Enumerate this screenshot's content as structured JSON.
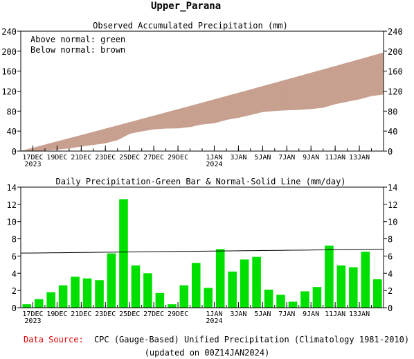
{
  "page_title": "Upper_Parana",
  "chart_data": [
    {
      "type": "area",
      "title": "Observed Accumulated Precipitation (mm)",
      "notes": [
        "Above normal: green",
        "Below normal: brown"
      ],
      "ylim": [
        0,
        240
      ],
      "yticks": [
        0,
        40,
        80,
        120,
        160,
        200,
        240
      ],
      "x_tick_labels": [
        {
          "day": 1,
          "label": "17DEC",
          "sub": "2023"
        },
        {
          "day": 3,
          "label": "19DEC",
          "sub": ""
        },
        {
          "day": 5,
          "label": "21DEC",
          "sub": ""
        },
        {
          "day": 7,
          "label": "23DEC",
          "sub": ""
        },
        {
          "day": 9,
          "label": "25DEC",
          "sub": ""
        },
        {
          "day": 11,
          "label": "27DEC",
          "sub": ""
        },
        {
          "day": 13,
          "label": "29DEC",
          "sub": ""
        },
        {
          "day": 16,
          "label": "1JAN",
          "sub": "2024"
        },
        {
          "day": 18,
          "label": "3JAN",
          "sub": ""
        },
        {
          "day": 20,
          "label": "5JAN",
          "sub": ""
        },
        {
          "day": 22,
          "label": "7JAN",
          "sub": ""
        },
        {
          "day": 24,
          "label": "9JAN",
          "sub": ""
        },
        {
          "day": 26,
          "label": "11JAN",
          "sub": ""
        },
        {
          "day": 28,
          "label": "13JAN",
          "sub": ""
        }
      ],
      "series": [
        {
          "name": "Observed",
          "values": [
            0.4,
            1.4,
            3.2,
            5.8,
            9.4,
            12.8,
            16.0,
            22.3,
            34.9,
            39.8,
            43.8,
            45.5,
            45.9,
            48.5,
            53.7,
            56.0,
            62.8,
            67.0,
            72.6,
            78.5,
            80.6,
            82.1,
            82.8,
            84.7,
            87.1,
            94.3,
            99.2,
            103.9,
            110.4,
            113.7
          ]
        },
        {
          "name": "Normal",
          "values": [
            6.3,
            12.7,
            19.0,
            25.4,
            31.8,
            38.2,
            44.6,
            51.0,
            57.5,
            64.0,
            70.5,
            77.0,
            83.5,
            90.0,
            96.6,
            103.2,
            109.8,
            116.4,
            123.0,
            129.6,
            136.3,
            143.0,
            149.7,
            156.4,
            163.1,
            169.8,
            176.6,
            183.4,
            190.2,
            197.0
          ]
        }
      ],
      "colors": {
        "below_normal_fill": "#c8a090",
        "above_normal_fill": "#00e000"
      }
    },
    {
      "type": "bar",
      "title": "Daily Precipitation-Green Bar & Normal-Solid Line (mm/day)",
      "ylim": [
        0,
        14
      ],
      "yticks": [
        0,
        2,
        4,
        6,
        8,
        10,
        12,
        14
      ],
      "series": [
        {
          "name": "Daily Precipitation",
          "values": [
            0.4,
            1.0,
            1.8,
            2.6,
            3.6,
            3.4,
            3.2,
            6.3,
            12.6,
            4.9,
            4.0,
            1.7,
            0.4,
            2.6,
            5.2,
            2.3,
            6.8,
            4.2,
            5.6,
            5.9,
            2.1,
            1.5,
            0.7,
            1.9,
            2.4,
            7.2,
            4.9,
            4.7,
            6.5,
            3.3
          ]
        },
        {
          "name": "Normal",
          "values": [
            6.35,
            6.36,
            6.38,
            6.39,
            6.41,
            6.42,
            6.44,
            6.45,
            6.47,
            6.48,
            6.5,
            6.51,
            6.53,
            6.54,
            6.56,
            6.57,
            6.59,
            6.6,
            6.62,
            6.63,
            6.65,
            6.66,
            6.68,
            6.69,
            6.71,
            6.72,
            6.74,
            6.75,
            6.77,
            6.8
          ]
        }
      ],
      "colors": {
        "bar": "#00e000",
        "normal_line": "#000000"
      }
    }
  ],
  "footer": {
    "source_label": "Data Source:",
    "source_text": "CPC (Gauge-Based) Unified Precipitation (Climatology 1981-2010)",
    "updated": "(updated on 00Z14JAN2024)",
    "source_label_color": "#e00000"
  }
}
